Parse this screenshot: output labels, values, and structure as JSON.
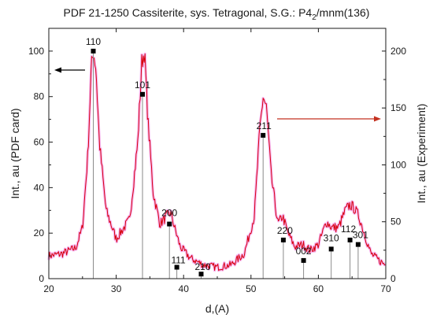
{
  "chart_data": {
    "type": "line",
    "title": "PDF 21-1250 Cassiterite, sys. Tetragonal, S.G.: P4",
    "title_sub": "2",
    "title_end": "/mnm(136)",
    "xlabel": "d,(A)",
    "ylabel_left": "Int., au (PDF card)",
    "ylabel_right": "Int., au (Experiment)",
    "xlim": [
      20,
      70
    ],
    "ylim_left": [
      0,
      110
    ],
    "ylim_right": [
      0,
      220
    ],
    "x_ticks": [
      "20",
      "30",
      "40",
      "50",
      "60",
      "70"
    ],
    "y_left_ticks": [
      "0",
      "20",
      "40",
      "60",
      "80",
      "100"
    ],
    "y_right_ticks": [
      "0",
      "50",
      "100",
      "150",
      "200"
    ],
    "grid": false,
    "colors": {
      "experiment": "#d8000d",
      "halo": "#ee7ee8",
      "reference": "#000000",
      "sticks": "#8a8a8a",
      "arrow_left": "#000000",
      "arrow_right": "#c43120"
    },
    "series": [
      {
        "kind": "reference_sticks",
        "axis": "left",
        "points": [
          {
            "x": 26.6,
            "y": 100,
            "label": "110"
          },
          {
            "x": 33.9,
            "y": 81,
            "label": "101"
          },
          {
            "x": 37.9,
            "y": 24,
            "label": "200"
          },
          {
            "x": 39.0,
            "y": 5,
            "label": "111"
          },
          {
            "x": 42.6,
            "y": 2,
            "label": "210"
          },
          {
            "x": 51.8,
            "y": 63,
            "label": "211"
          },
          {
            "x": 54.8,
            "y": 17,
            "label": "220"
          },
          {
            "x": 57.8,
            "y": 8,
            "label": "002"
          },
          {
            "x": 61.9,
            "y": 13,
            "label": "310"
          },
          {
            "x": 64.7,
            "y": 17,
            "label": "112"
          },
          {
            "x": 65.9,
            "y": 15,
            "label": "301"
          }
        ]
      },
      {
        "kind": "experiment",
        "axis": "right",
        "x": [
          20,
          22,
          24,
          25,
          25.8,
          26.3,
          26.6,
          27,
          27.5,
          28.5,
          30,
          32,
          33.2,
          33.8,
          34.2,
          34.7,
          35.5,
          36.5,
          37.5,
          38.1,
          38.7,
          39.5,
          41,
          43,
          45,
          47,
          49,
          50.5,
          51.3,
          51.8,
          52.3,
          53,
          54,
          54.7,
          55.5,
          56.5,
          57.7,
          58.8,
          60,
          61.2,
          62,
          63,
          64,
          64.7,
          65.3,
          66,
          66.8,
          67.8,
          69,
          70
        ],
        "y": [
          20,
          22,
          27,
          45,
          110,
          185,
          200,
          185,
          120,
          60,
          35,
          52,
          120,
          190,
          200,
          140,
          75,
          48,
          55,
          58,
          44,
          28,
          18,
          12,
          10,
          12,
          22,
          55,
          130,
          160,
          150,
          90,
          48,
          55,
          40,
          28,
          30,
          25,
          30,
          50,
          45,
          45,
          60,
          65,
          62,
          55,
          40,
          22,
          16,
          12
        ]
      }
    ],
    "annotations": [
      {
        "text": "←",
        "meaning": "left axis",
        "x": 23.5,
        "y_right": 186
      },
      {
        "text": "→",
        "meaning": "right axis",
        "x": 60,
        "y_right": 145
      }
    ]
  }
}
